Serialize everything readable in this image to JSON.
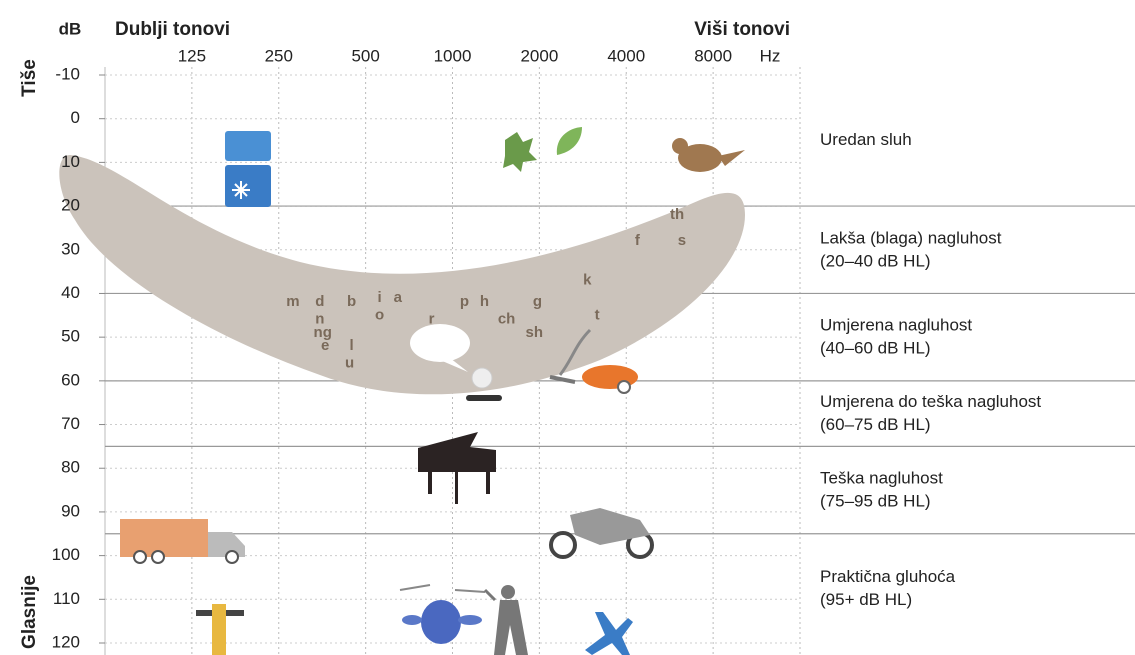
{
  "chart_data": {
    "type": "audiogram",
    "y_unit": "dB",
    "x_unit": "Hz",
    "low_tones": "Dublji tonovi",
    "high_tones": "Viši tonovi",
    "quieter": "Tiše",
    "louder": "Glasnije",
    "x_scale": "log",
    "y_inverted": true,
    "grid": true,
    "xlim": [
      62.5,
      16000
    ],
    "xticks": [
      125,
      250,
      500,
      1000,
      2000,
      4000,
      8000
    ],
    "ylim": [
      -10,
      120
    ],
    "yticks": [
      -10,
      0,
      10,
      20,
      30,
      40,
      50,
      60,
      70,
      80,
      90,
      100,
      110,
      120
    ],
    "banana_color": "#cbc3bb",
    "phoneme_color": "#7a6a5a",
    "phonemes": [
      {
        "label": "m",
        "x": 280,
        "y": 42
      },
      {
        "label": "d",
        "x": 347,
        "y": 42
      },
      {
        "label": "n",
        "x": 347,
        "y": 46
      },
      {
        "label": "ng",
        "x": 355,
        "y": 49
      },
      {
        "label": "e",
        "x": 362,
        "y": 52
      },
      {
        "label": "l",
        "x": 447,
        "y": 52
      },
      {
        "label": "u",
        "x": 440,
        "y": 56
      },
      {
        "label": "b",
        "x": 447,
        "y": 42
      },
      {
        "label": "i",
        "x": 559,
        "y": 41
      },
      {
        "label": "o",
        "x": 559,
        "y": 45
      },
      {
        "label": "a",
        "x": 646,
        "y": 41
      },
      {
        "label": "r",
        "x": 846,
        "y": 46
      },
      {
        "label": "p",
        "x": 1100,
        "y": 42
      },
      {
        "label": "h",
        "x": 1290,
        "y": 42
      },
      {
        "label": "ch",
        "x": 1540,
        "y": 46
      },
      {
        "label": "g",
        "x": 1970,
        "y": 42
      },
      {
        "label": "sh",
        "x": 1920,
        "y": 49
      },
      {
        "label": "k",
        "x": 2930,
        "y": 37
      },
      {
        "label": "t",
        "x": 3170,
        "y": 45
      },
      {
        "label": "f",
        "x": 4370,
        "y": 28
      },
      {
        "label": "s",
        "x": 6240,
        "y": 28
      },
      {
        "label": "th",
        "x": 6000,
        "y": 22
      }
    ],
    "hearing_levels": [
      {
        "name": "Uredan sluh",
        "from": -10,
        "to": 20
      },
      {
        "name": "Lakša (blaga) nagluhost",
        "range_label": "(20–40 dB HL)",
        "from": 20,
        "to": 40
      },
      {
        "name": "Umjerena nagluhost",
        "range_label": "(40–60 dB HL)",
        "from": 40,
        "to": 60
      },
      {
        "name": "Umjerena do teška nagluhost",
        "range_label": "(60–75 dB HL)",
        "from": 60,
        "to": 75
      },
      {
        "name": "Teška nagluhost",
        "range_label": "(75–95 dB HL)",
        "from": 75,
        "to": 95
      },
      {
        "name": "Praktična gluhoća",
        "range_label": "(95+ dB HL)",
        "from": 95,
        "to": 120
      }
    ]
  }
}
